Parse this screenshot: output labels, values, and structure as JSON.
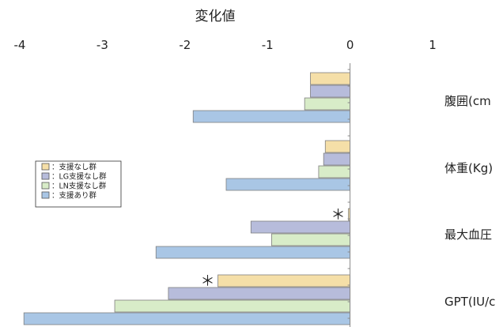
{
  "chart_data": {
    "type": "bar",
    "orientation": "horizontal",
    "title": "変化値",
    "xlim": [
      -4,
      1
    ],
    "x_ticks": [
      "-4",
      "-3",
      "-2",
      "-1",
      "0",
      "1"
    ],
    "categories": [
      "腹囲(cm",
      "体重(Kg)",
      "最大血圧",
      "GPT(IU/c"
    ],
    "series": [
      {
        "name": "：支援なし群",
        "color": "#f5dfa8",
        "values": [
          -0.48,
          -0.3,
          -0.02,
          -1.6
        ]
      },
      {
        "name": "：LG支援なし群",
        "color": "#b7bcdb",
        "values": [
          -0.48,
          -0.32,
          -1.2,
          -2.2
        ]
      },
      {
        "name": "：LN支援なし群",
        "color": "#d8ecc8",
        "values": [
          -0.55,
          -0.38,
          -0.95,
          -2.85
        ]
      },
      {
        "name": "：支援あり群",
        "color": "#a9c6e5",
        "values": [
          -1.9,
          -1.5,
          -2.35,
          -3.95
        ]
      }
    ],
    "annotations": [
      {
        "text": "＊",
        "category_index": 2,
        "series_index": 0
      },
      {
        "text": "＊",
        "category_index": 3,
        "series_index": 0
      }
    ],
    "legend_position": "left"
  }
}
